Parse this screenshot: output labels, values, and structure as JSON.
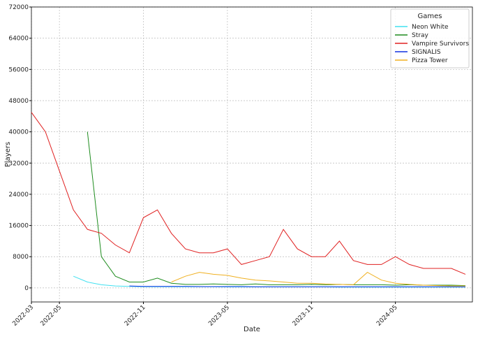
{
  "chart_data": {
    "type": "line",
    "xlabel": "Date",
    "ylabel": "Players",
    "x": [
      "2022-03",
      "2022-04",
      "2022-05",
      "2022-06",
      "2022-07",
      "2022-08",
      "2022-09",
      "2022-10",
      "2022-11",
      "2022-12",
      "2023-01",
      "2023-02",
      "2023-03",
      "2023-04",
      "2023-05",
      "2023-06",
      "2023-07",
      "2023-08",
      "2023-09",
      "2023-10",
      "2023-11",
      "2023-12",
      "2024-01",
      "2024-02",
      "2024-03",
      "2024-04",
      "2024-05",
      "2024-06",
      "2024-07",
      "2024-08",
      "2024-09",
      "2024-10"
    ],
    "series": [
      {
        "name": "Neon White",
        "color": "#40e0f0",
        "values": [
          null,
          null,
          null,
          3000,
          1500,
          800,
          500,
          400,
          300,
          300,
          300,
          300,
          300,
          300,
          250,
          250,
          250,
          250,
          250,
          250,
          250,
          250,
          200,
          200,
          200,
          200,
          200,
          200,
          200,
          200,
          200,
          200
        ]
      },
      {
        "name": "Stray",
        "color": "#1e8c1e",
        "values": [
          null,
          null,
          null,
          null,
          40000,
          8000,
          3000,
          1500,
          1500,
          2500,
          1200,
          900,
          900,
          1000,
          900,
          800,
          1000,
          800,
          800,
          800,
          900,
          800,
          900,
          800,
          800,
          800,
          700,
          800,
          700,
          700,
          700,
          600
        ]
      },
      {
        "name": "Vampire Survivors",
        "color": "#e02020",
        "values": [
          45000,
          40000,
          30000,
          20000,
          15000,
          14000,
          11000,
          9000,
          18000,
          20000,
          14000,
          10000,
          9000,
          9000,
          10000,
          6000,
          7000,
          8000,
          15000,
          10000,
          8000,
          8000,
          12000,
          7000,
          6000,
          6000,
          8000,
          6000,
          5000,
          5000,
          5000,
          3500
        ]
      },
      {
        "name": "SIGNALIS",
        "color": "#1030e0",
        "values": [
          null,
          null,
          null,
          null,
          null,
          null,
          null,
          500,
          400,
          400,
          400,
          400,
          350,
          350,
          350,
          350,
          300,
          300,
          300,
          300,
          300,
          300,
          300,
          300,
          300,
          300,
          300,
          300,
          300,
          300,
          300,
          300
        ]
      },
      {
        "name": "Pizza Tower",
        "color": "#f0b020",
        "values": [
          null,
          null,
          null,
          null,
          null,
          null,
          null,
          null,
          null,
          null,
          1500,
          3000,
          4000,
          3500,
          3200,
          2500,
          2000,
          1800,
          1500,
          1200,
          1200,
          1000,
          900,
          800,
          4000,
          2000,
          1200,
          900,
          700,
          600,
          500,
          500
        ]
      }
    ],
    "xlim": [
      "2022-03",
      "2024-10"
    ],
    "xticks": [
      "2022-03",
      "2022-05",
      "2022-11",
      "2023-05",
      "2023-11",
      "2024-05"
    ],
    "ylim": [
      -3600,
      72000
    ],
    "yticks": [
      0,
      8000,
      16000,
      24000,
      32000,
      40000,
      48000,
      56000,
      64000,
      72000
    ],
    "grid": true,
    "legend_title": "Games",
    "legend_loc": "upper right"
  }
}
